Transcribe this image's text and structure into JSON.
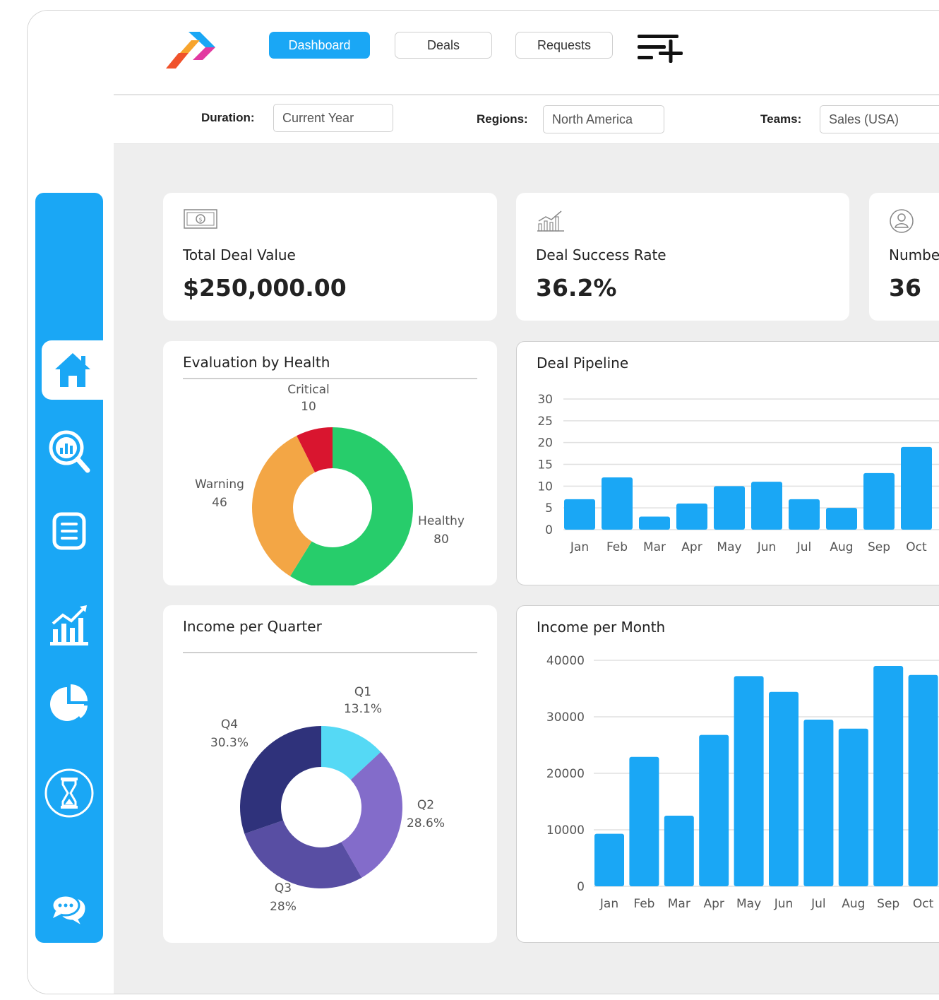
{
  "nav": {
    "buttons": [
      {
        "label": "Dashboard",
        "active": true
      },
      {
        "label": "Deals",
        "active": false
      },
      {
        "label": "Requests",
        "active": false
      }
    ]
  },
  "filters": {
    "duration": {
      "label": "Duration:",
      "value": "Current Year"
    },
    "regions": {
      "label": "Regions:",
      "value": "North America"
    },
    "teams": {
      "label": "Teams:",
      "value": "Sales (USA)"
    }
  },
  "kpis": [
    {
      "label": "Total Deal Value",
      "value": "$250,000.00",
      "icon": "money-bill-icon"
    },
    {
      "label": "Deal Success Rate",
      "value": "36.2%",
      "icon": "growth-chart-icon"
    },
    {
      "label": "Numbe",
      "value": "36",
      "icon": "user-circle-icon"
    }
  ],
  "sidebar": {
    "items": [
      "home-icon",
      "search-analytics-icon",
      "list-icon",
      "growth-chart-icon",
      "pie-chart-icon",
      "hourglass-icon",
      "chat-icon"
    ],
    "active": "home-icon"
  },
  "colors": {
    "accent": "#1aa7f5",
    "healthy": "#27cd6b",
    "warning": "#f3a645",
    "critical": "#d9152f",
    "q1": "#55d9f5",
    "q2": "#836cca",
    "q3": "#584ea3",
    "q4": "#2f327b"
  },
  "chart_data": [
    {
      "id": "health",
      "type": "pie",
      "title": "Evaluation by Health",
      "donut": true,
      "slices": [
        {
          "label": "Healthy",
          "value": 80
        },
        {
          "label": "Warning",
          "value": 46
        },
        {
          "label": "Critical",
          "value": 10
        }
      ]
    },
    {
      "id": "pipeline",
      "type": "bar",
      "title": "Deal Pipeline",
      "categories": [
        "Jan",
        "Feb",
        "Mar",
        "Apr",
        "May",
        "Jun",
        "Jul",
        "Aug",
        "Sep",
        "Oct"
      ],
      "values": [
        7,
        12,
        3,
        6,
        10,
        11,
        7,
        5,
        13,
        19
      ],
      "yticks": [
        0,
        5,
        10,
        15,
        20,
        25,
        30
      ],
      "ylim": [
        0,
        30
      ],
      "grid": true
    },
    {
      "id": "quarter",
      "type": "pie",
      "title": "Income per Quarter",
      "donut": true,
      "slices": [
        {
          "label": "Q1",
          "value": 13.1,
          "display": "13.1%"
        },
        {
          "label": "Q2",
          "value": 28.6,
          "display": "28.6%"
        },
        {
          "label": "Q3",
          "value": 28,
          "display": "28%"
        },
        {
          "label": "Q4",
          "value": 30.3,
          "display": "30.3%"
        }
      ]
    },
    {
      "id": "month",
      "type": "bar",
      "title": "Income per Month",
      "categories": [
        "Jan",
        "Feb",
        "Mar",
        "Apr",
        "May",
        "Jun",
        "Jul",
        "Aug",
        "Sep",
        "Oct"
      ],
      "values": [
        9300,
        22900,
        12500,
        26800,
        37200,
        34400,
        29500,
        27900,
        39000,
        37400
      ],
      "yticks": [
        0,
        10000,
        20000,
        30000,
        40000
      ],
      "ylim": [
        0,
        40000
      ],
      "grid": true
    }
  ]
}
